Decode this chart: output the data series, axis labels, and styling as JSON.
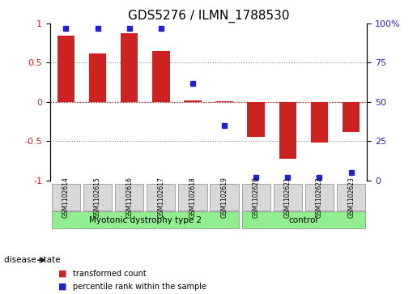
{
  "title": "GDS5276 / ILMN_1788530",
  "samples": [
    "GSM1102614",
    "GSM1102615",
    "GSM1102616",
    "GSM1102617",
    "GSM1102618",
    "GSM1102619",
    "GSM1102620",
    "GSM1102621",
    "GSM1102622",
    "GSM1102623"
  ],
  "red_bars": [
    0.85,
    0.62,
    0.88,
    0.65,
    0.02,
    0.01,
    -0.45,
    -0.72,
    -0.52,
    -0.38
  ],
  "blue_squares_pct": [
    97,
    97,
    97,
    97,
    62,
    35,
    2,
    2,
    2,
    5
  ],
  "groups": [
    {
      "label": "Myotonic dystrophy type 2",
      "start": 0,
      "end": 6,
      "color": "#90EE90"
    },
    {
      "label": "control",
      "start": 6,
      "end": 10,
      "color": "#90EE90"
    }
  ],
  "ylim_left": [
    -1,
    1
  ],
  "ylim_right": [
    0,
    100
  ],
  "bar_color": "#CC2222",
  "square_color": "#2222CC",
  "yticks_left": [
    -1,
    -0.5,
    0,
    0.5,
    1
  ],
  "ytick_labels_left": [
    "-1",
    "-0.5",
    "0",
    "0.5",
    "1"
  ],
  "yticks_right": [
    0,
    25,
    50,
    75,
    100
  ],
  "ytick_labels_right": [
    "0",
    "25",
    "50",
    "75",
    "100%"
  ],
  "legend_red": "transformed count",
  "legend_blue": "percentile rank within the sample",
  "disease_state_label": "disease state",
  "bg_color_axis": "#f0f0f0",
  "grid_color": "#888888",
  "title_fontsize": 11,
  "tick_fontsize": 8,
  "label_fontsize": 9
}
